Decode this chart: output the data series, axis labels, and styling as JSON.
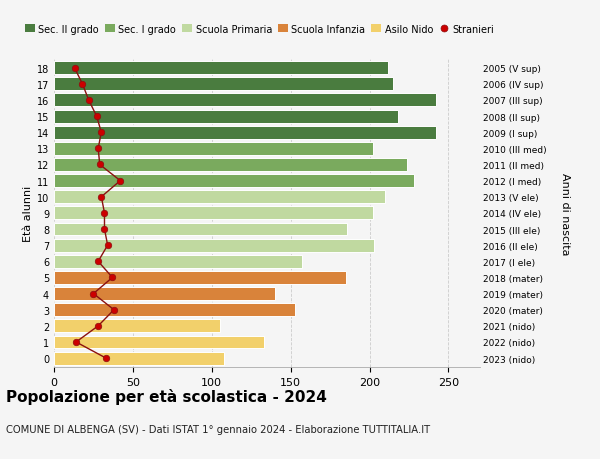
{
  "ages": [
    18,
    17,
    16,
    15,
    14,
    13,
    12,
    11,
    10,
    9,
    8,
    7,
    6,
    5,
    4,
    3,
    2,
    1,
    0
  ],
  "right_labels": [
    "2005 (V sup)",
    "2006 (IV sup)",
    "2007 (III sup)",
    "2008 (II sup)",
    "2009 (I sup)",
    "2010 (III med)",
    "2011 (II med)",
    "2012 (I med)",
    "2013 (V ele)",
    "2014 (IV ele)",
    "2015 (III ele)",
    "2016 (II ele)",
    "2017 (I ele)",
    "2018 (mater)",
    "2019 (mater)",
    "2020 (mater)",
    "2021 (nido)",
    "2022 (nido)",
    "2023 (nido)"
  ],
  "bar_values": [
    212,
    215,
    242,
    218,
    242,
    202,
    224,
    228,
    210,
    202,
    186,
    203,
    157,
    185,
    140,
    153,
    105,
    133,
    108
  ],
  "bar_colors": [
    "#4a7c3f",
    "#4a7c3f",
    "#4a7c3f",
    "#4a7c3f",
    "#4a7c3f",
    "#7aaa5e",
    "#7aaa5e",
    "#7aaa5e",
    "#c0d9a0",
    "#c0d9a0",
    "#c0d9a0",
    "#c0d9a0",
    "#c0d9a0",
    "#d9833a",
    "#d9833a",
    "#d9833a",
    "#f2d06b",
    "#f2d06b",
    "#f2d06b"
  ],
  "stranieri_values": [
    13,
    18,
    22,
    27,
    30,
    28,
    29,
    42,
    30,
    32,
    32,
    34,
    28,
    37,
    25,
    38,
    28,
    14,
    33
  ],
  "legend_labels": [
    "Sec. II grado",
    "Sec. I grado",
    "Scuola Primaria",
    "Scuola Infanzia",
    "Asilo Nido",
    "Stranieri"
  ],
  "legend_colors": [
    "#4a7c3f",
    "#7aaa5e",
    "#c0d9a0",
    "#d9833a",
    "#f2d06b",
    "#cc0000"
  ],
  "title": "Popolazione per età scolastica - 2024",
  "subtitle": "COMUNE DI ALBENGA (SV) - Dati ISTAT 1° gennaio 2024 - Elaborazione TUTTITALIA.IT",
  "ylabel": "Età alunni",
  "right_ylabel": "Anni di nascita",
  "xlim": [
    0,
    270
  ],
  "xticks": [
    0,
    50,
    100,
    150,
    200,
    250
  ],
  "background_color": "#f5f5f5",
  "grid_color": "#cccccc",
  "line_color": "#8b1010",
  "dot_color": "#cc0000"
}
